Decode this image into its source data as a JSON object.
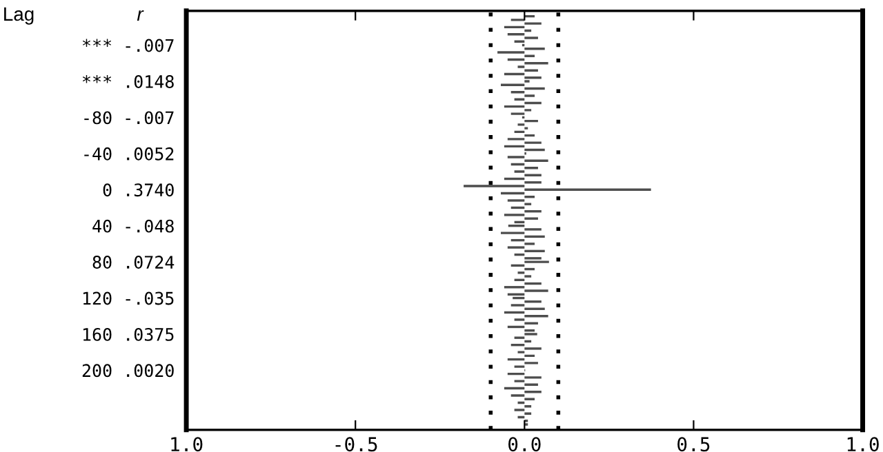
{
  "chart_data": {
    "type": "bar",
    "orientation": "horizontal",
    "annotations": [
      "Lag",
      "r"
    ],
    "categories": [
      null,
      null,
      null,
      null,
      null,
      null,
      null,
      null,
      "*** -.007",
      null,
      null,
      null,
      null,
      null,
      null,
      null,
      null,
      null,
      "*** .0148",
      null,
      null,
      null,
      null,
      null,
      null,
      null,
      null,
      null,
      "-80 -.007",
      null,
      null,
      null,
      null,
      null,
      null,
      null,
      null,
      null,
      "-40 .0052",
      null,
      null,
      null,
      null,
      null,
      null,
      null,
      null,
      null,
      "0 .3740",
      null,
      null,
      null,
      null,
      null,
      null,
      null,
      null,
      null,
      "40 -.048",
      null,
      null,
      null,
      null,
      null,
      null,
      null,
      null,
      null,
      "80 .0724",
      null,
      null,
      null,
      null,
      null,
      null,
      null,
      null,
      null,
      "120 -.035",
      null,
      null,
      null,
      null,
      null,
      null,
      null,
      null,
      null,
      "160 .0375",
      null,
      null,
      null,
      null,
      null,
      null,
      null,
      null,
      null,
      "200 .0020",
      null,
      null,
      null,
      null,
      null,
      null,
      null,
      null,
      null,
      null,
      null,
      null,
      null,
      null,
      null
    ],
    "values": [
      0.03,
      -0.04,
      0.05,
      -0.06,
      0.02,
      -0.05,
      0.04,
      -0.03,
      -0.007,
      0.06,
      -0.08,
      0.03,
      -0.05,
      0.07,
      -0.02,
      0.04,
      -0.06,
      0.05,
      0.0148,
      -0.07,
      0.06,
      -0.04,
      0.03,
      -0.03,
      0.05,
      -0.06,
      0.02,
      -0.04,
      -0.007,
      0.04,
      -0.02,
      0.01,
      -0.03,
      0.03,
      -0.05,
      0.05,
      -0.06,
      0.06,
      0.0052,
      -0.05,
      0.07,
      -0.04,
      0.04,
      -0.03,
      0.05,
      -0.06,
      0.05,
      -0.18,
      0.374,
      -0.07,
      0.03,
      -0.05,
      0.02,
      -0.04,
      0.05,
      -0.06,
      0.04,
      -0.03,
      -0.048,
      0.05,
      -0.07,
      0.06,
      -0.04,
      0.03,
      -0.05,
      0.06,
      -0.03,
      0.05,
      0.0724,
      -0.04,
      0.03,
      -0.02,
      0.02,
      -0.03,
      0.05,
      -0.06,
      0.07,
      -0.05,
      -0.035,
      0.05,
      -0.04,
      0.06,
      -0.06,
      0.07,
      -0.03,
      0.04,
      -0.05,
      0.03,
      0.0375,
      -0.03,
      0.02,
      -0.04,
      0.05,
      -0.02,
      0.03,
      -0.05,
      0.04,
      -0.03,
      0.002,
      -0.05,
      0.05,
      -0.03,
      0.04,
      -0.06,
      0.05,
      -0.04,
      0.03,
      -0.02,
      0.02,
      -0.03,
      0.02,
      -0.02,
      0.01,
      0.01
    ],
    "color": "#4d4d4d",
    "xlim": [
      -1.0,
      1.0
    ],
    "xticks": [
      {
        "value": -1.0,
        "label": "1.0"
      },
      {
        "value": -0.5,
        "label": "-0.5"
      },
      {
        "value": 0.0,
        "label": "0.0"
      },
      {
        "value": 0.5,
        "label": "0.5"
      },
      {
        "value": 1.0,
        "label": "1.0"
      }
    ],
    "ref_lines": [
      {
        "axis": "x",
        "value": -0.1,
        "color": "#000000",
        "line_style": "dotted"
      },
      {
        "axis": "x",
        "value": 0.1,
        "color": "#000000",
        "line_style": "dotted"
      }
    ],
    "grid": false,
    "legend": false
  }
}
